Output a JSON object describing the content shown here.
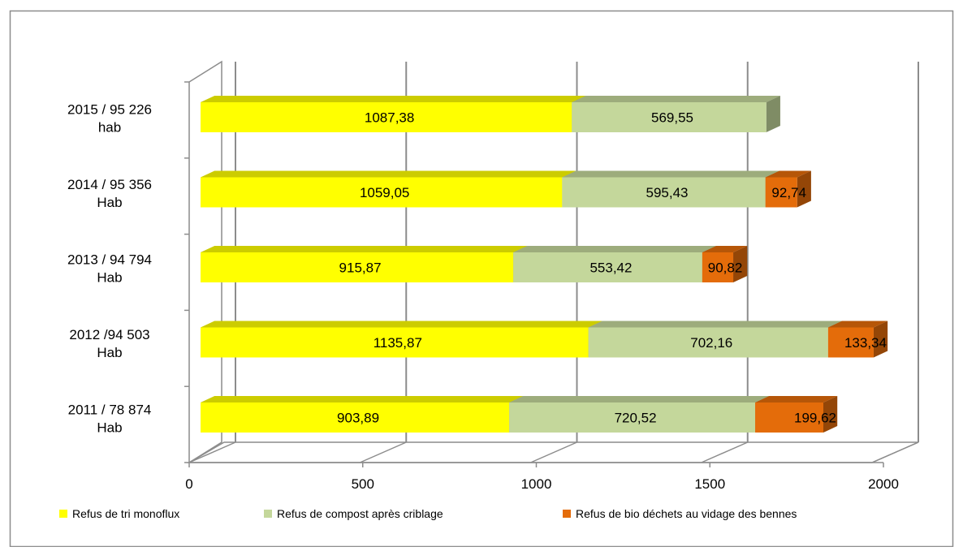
{
  "chart_data": {
    "type": "bar",
    "orientation": "horizontal",
    "stacked": true,
    "three_d": true,
    "categories": [
      [
        "2015 / 95 226",
        "hab"
      ],
      [
        "2014 / 95 356",
        "Hab"
      ],
      [
        "2013 / 94 794",
        "Hab"
      ],
      [
        "2012 /94 503",
        "Hab"
      ],
      [
        "2011 / 78 874",
        "Hab"
      ]
    ],
    "series": [
      {
        "name": "Refus de tri monoflux",
        "color": "#ffff00",
        "values": [
          1087.38,
          1059.05,
          915.87,
          1135.87,
          903.89
        ],
        "labels": [
          "1087,38",
          "1059,05",
          "915,87",
          "1135,87",
          "903,89"
        ]
      },
      {
        "name": "Refus de compost après criblage",
        "color": "#c4d79b",
        "values": [
          569.55,
          595.43,
          553.42,
          702.16,
          720.52
        ],
        "labels": [
          "569,55",
          "595,43",
          "553,42",
          "702,16",
          "720,52"
        ]
      },
      {
        "name": "Refus de bio déchets au vidage des bennes",
        "color": "#e46c0a",
        "values": [
          0,
          92.74,
          90.82,
          133.34,
          199.62
        ],
        "labels": [
          "",
          "92,74",
          "90,82",
          "133,34",
          "199,62"
        ]
      }
    ],
    "x_ticks": [
      "0",
      "500",
      "1000",
      "1500",
      "2000"
    ],
    "xlim": [
      0,
      2000
    ],
    "grid": "vertical",
    "legend_position": "bottom"
  }
}
